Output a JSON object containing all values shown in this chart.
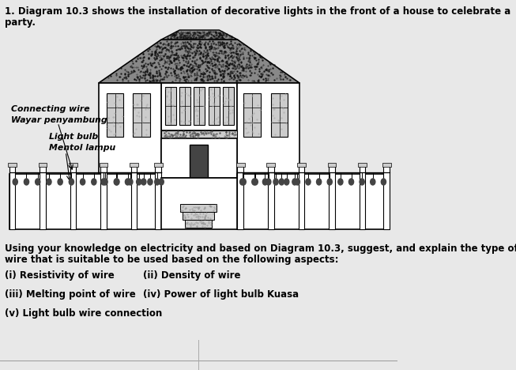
{
  "bg_color": "#e8e8e8",
  "white": "#ffffff",
  "black": "#000000",
  "dark_gray": "#444444",
  "mid_gray": "#888888",
  "light_gray": "#cccccc",
  "roof_stipple_color": "#555555",
  "title_line1": "1. Diagram 10.3 shows the installation of decorative lights in the front of a house to celebrate a",
  "title_line2": "party.",
  "connecting_wire_label1": "Connecting wire",
  "connecting_wire_label2": "Wayar penyambung",
  "light_bulb_label1": "Light bulb",
  "light_bulb_label2": "Mentol lampu",
  "instruction_line1": "Using your knowledge on electricity and based on Diagram 10.3, suggest, and explain the type of",
  "instruction_line2": "wire that is suitable to be used based on the following aspects:",
  "items": [
    [
      "(i) Resistivity of wire",
      "(ii) Density of wire"
    ],
    [
      "(iii) Melting point of wire",
      "(iv) Power of light bulb Kuasa"
    ],
    [
      "(v) Light bulb wire connection",
      ""
    ]
  ]
}
